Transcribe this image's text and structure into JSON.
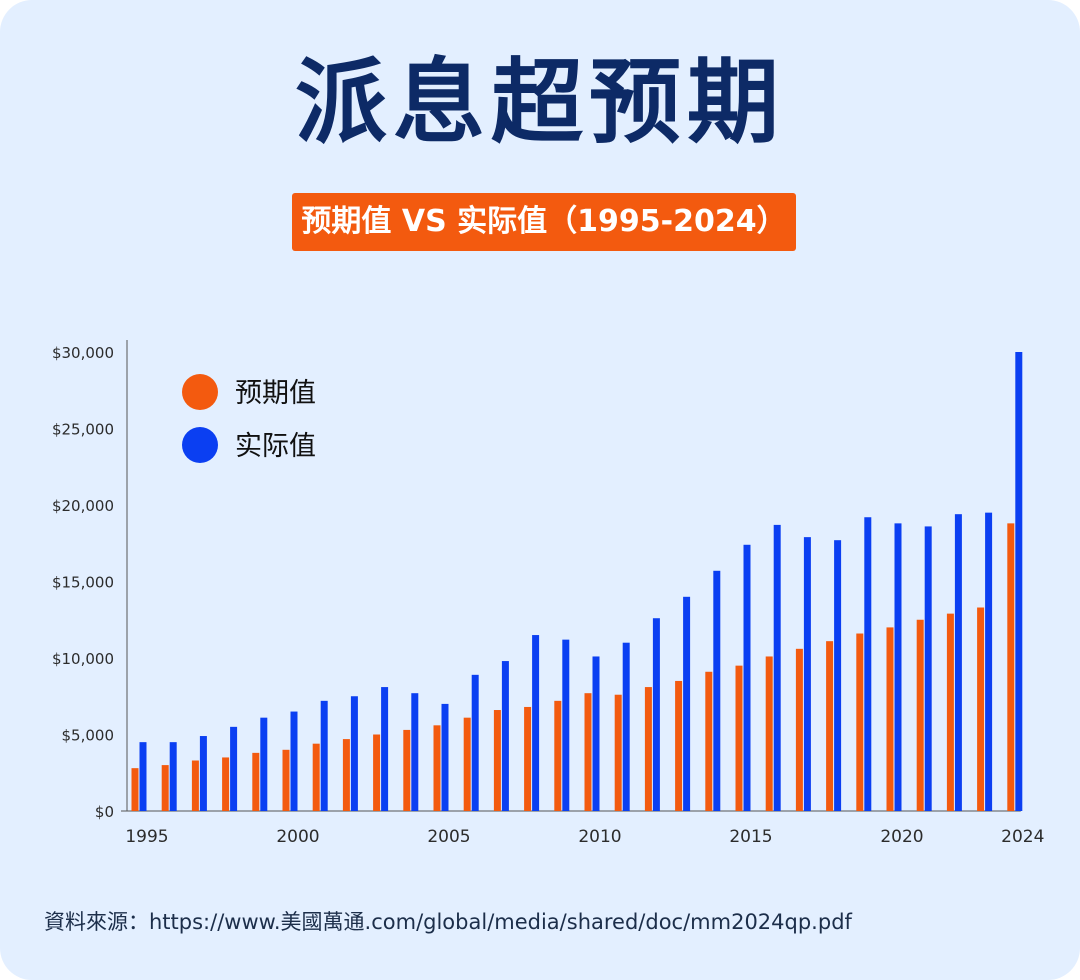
{
  "title": "派息超预期",
  "subtitle": "预期值 VS 实际值（1995-2024）",
  "source": "資料來源：https://www.美國萬通.com/global/media/shared/doc/mm2024qp.pdf",
  "colors": {
    "background": "#e3efff",
    "title": "#0d2a66",
    "expected": "#f35a0f",
    "actual": "#0b3ff2",
    "axis": "#555555",
    "tick_text": "#2c2c2c"
  },
  "chart_data": {
    "type": "bar",
    "title": "预期值 VS 实际值（1995-2024）",
    "xlabel": "",
    "ylabel": "",
    "ylim": [
      0,
      30000
    ],
    "y_ticks": [
      0,
      5000,
      10000,
      15000,
      20000,
      25000,
      30000
    ],
    "y_tick_labels": [
      "$0",
      "$5,000",
      "$10,000",
      "$15,000",
      "$20,000",
      "$25,000",
      "$30,000"
    ],
    "x_tick_labels": [
      "1995",
      "2000",
      "2005",
      "2010",
      "2015",
      "2020",
      "2024"
    ],
    "legend_position": "top-left",
    "categories": [
      "1995",
      "1996",
      "1997",
      "1998",
      "1999",
      "2000",
      "2001",
      "2002",
      "2003",
      "2004",
      "2005",
      "2006",
      "2007",
      "2008",
      "2009",
      "2010",
      "2011",
      "2012",
      "2013",
      "2014",
      "2015",
      "2016",
      "2017",
      "2018",
      "2019",
      "2020",
      "2021",
      "2022",
      "2023",
      "2024"
    ],
    "series": [
      {
        "name": "预期值",
        "color": "#f35a0f",
        "values": [
          2800,
          3000,
          3300,
          3500,
          3800,
          4000,
          4400,
          4700,
          5000,
          5300,
          5600,
          6100,
          6600,
          6800,
          7200,
          7700,
          7600,
          8100,
          8500,
          9100,
          9500,
          10100,
          10600,
          11100,
          11600,
          12000,
          12500,
          12900,
          13300,
          18800
        ]
      },
      {
        "name": "实际值",
        "color": "#0b3ff2",
        "values": [
          4500,
          4500,
          4900,
          5500,
          6100,
          6500,
          7200,
          7500,
          8100,
          7700,
          7000,
          8900,
          9800,
          11500,
          11200,
          10100,
          11000,
          12600,
          14000,
          15700,
          17400,
          18700,
          17900,
          17700,
          19200,
          18800,
          18600,
          19400,
          19500,
          30000
        ]
      }
    ]
  }
}
